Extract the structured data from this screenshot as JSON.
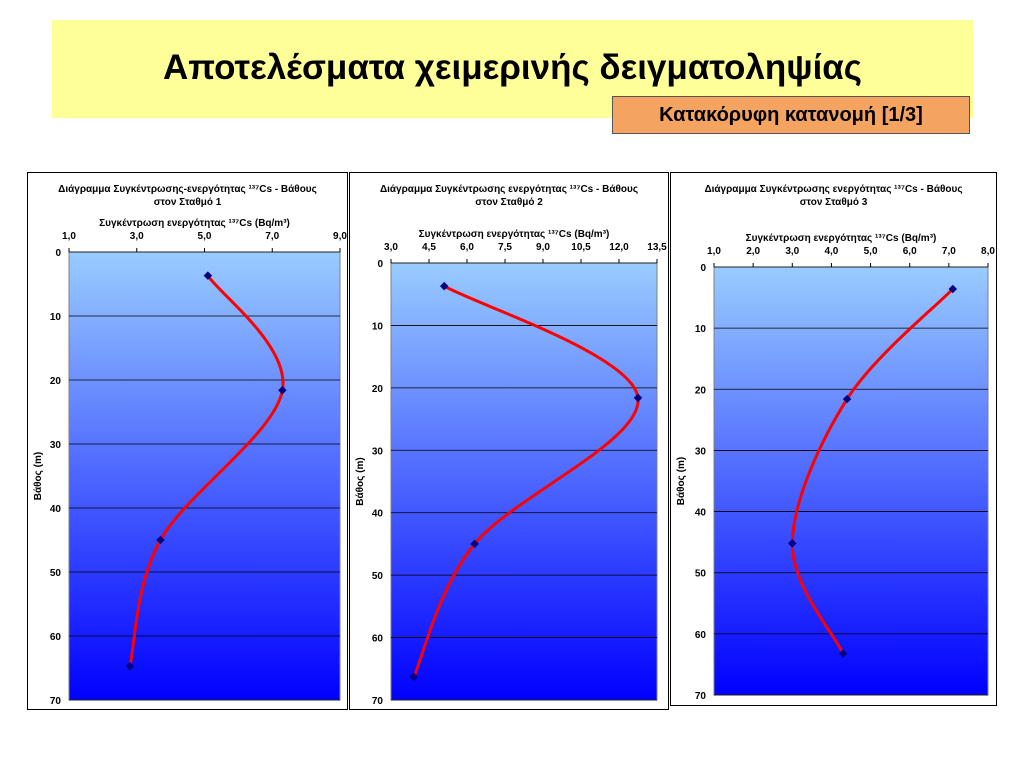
{
  "slide": {
    "title": "Αποτελέσματα χειμερινής δειγματοληψίας",
    "subtitle": "Κατακόρυφη κατανομή [1/3]"
  },
  "chart_data": [
    {
      "type": "line",
      "title": "Διάγραμμα Συγκέντρωσης-ενεργότητας ¹³⁷Cs - Βάθους στον Σταθμό 1",
      "xlabel": "Συγκέντρωση ενεργότητας ¹³⁷Cs (Bq/m³)",
      "ylabel": "Βάθος (m)",
      "x": [
        5.1,
        7.3,
        3.7,
        2.8
      ],
      "values": [
        3.7,
        21.6,
        45,
        64.7
      ],
      "xlim": [
        1,
        9
      ],
      "xticks": [
        {
          "value": 1,
          "label": "1,0"
        },
        {
          "value": 3,
          "label": "3,0"
        },
        {
          "value": 5,
          "label": "5,0"
        },
        {
          "value": 7,
          "label": "7,0"
        },
        {
          "value": 9,
          "label": "9,0"
        }
      ],
      "ylim": [
        0,
        70
      ],
      "yticks": [
        0,
        10,
        20,
        30,
        40,
        50,
        60,
        70
      ],
      "y_inverted": true,
      "grid": true,
      "color": "#ff0000",
      "marker_color": "#000080"
    },
    {
      "type": "line",
      "title": "Διάγραμμα Συγκέντρωσης ενεργότητας ¹³⁷Cs - Βάθους στον Σταθμό 2",
      "xlabel": "Συγκέντρωση ενεργότητας ¹³⁷Cs (Bq/m³)",
      "ylabel": "Βάθος (m)",
      "x": [
        5.1,
        12.75,
        6.3,
        3.9
      ],
      "values": [
        3.7,
        21.6,
        45,
        66.3
      ],
      "xlim": [
        3,
        13.5
      ],
      "xticks": [
        {
          "value": 3,
          "label": "3,0"
        },
        {
          "value": 4.5,
          "label": "4,5"
        },
        {
          "value": 6,
          "label": "6,0"
        },
        {
          "value": 7.5,
          "label": "7,5"
        },
        {
          "value": 9,
          "label": "9,0"
        },
        {
          "value": 10.5,
          "label": "10,5"
        },
        {
          "value": 12,
          "label": "12,0"
        },
        {
          "value": 13.5,
          "label": "13,5"
        }
      ],
      "ylim": [
        0,
        70
      ],
      "yticks": [
        0,
        10,
        20,
        30,
        40,
        50,
        60,
        70
      ],
      "y_inverted": true,
      "grid": true,
      "color": "#ff0000",
      "marker_color": "#000080"
    },
    {
      "type": "line",
      "title": "Διάγραμμα Συγκέντρωσης ενεργότητας ¹³⁷Cs - Βάθους στον Σταθμό 3",
      "xlabel": "Συγκέντρωση ενεργότητας ¹³⁷Cs (Bq/m³)",
      "ylabel": "Βάθος (m)",
      "x": [
        7.1,
        4.4,
        3.0,
        4.3
      ],
      "values": [
        3.6,
        21.6,
        45.2,
        63.2
      ],
      "xlim": [
        1,
        8
      ],
      "xticks": [
        {
          "value": 1,
          "label": "1,0"
        },
        {
          "value": 2,
          "label": "2,0"
        },
        {
          "value": 3,
          "label": "3,0"
        },
        {
          "value": 4,
          "label": "4,0"
        },
        {
          "value": 5,
          "label": "5,0"
        },
        {
          "value": 6,
          "label": "6,0"
        },
        {
          "value": 7,
          "label": "7,0"
        },
        {
          "value": 8,
          "label": "8,0"
        }
      ],
      "ylim": [
        0,
        70
      ],
      "yticks": [
        0,
        10,
        20,
        30,
        40,
        50,
        60,
        70
      ],
      "y_inverted": true,
      "grid": true,
      "color": "#ff0000",
      "marker_color": "#000080"
    }
  ]
}
